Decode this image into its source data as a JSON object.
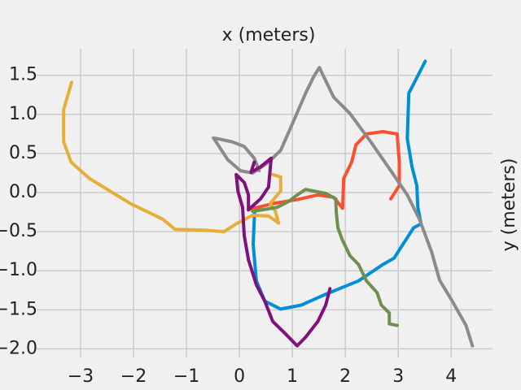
{
  "chart_data": {
    "type": "line",
    "title": "x (meters)",
    "ylabel": "y (meters)",
    "ylabel_side": "right",
    "grid": true,
    "xlim": [
      -3.83,
      4.78
    ],
    "ylim": [
      -2.11,
      1.84
    ],
    "xticks": [
      {
        "value": -3,
        "label": "−3"
      },
      {
        "value": -2,
        "label": "−2"
      },
      {
        "value": -1,
        "label": "−1"
      },
      0,
      1,
      2,
      3,
      4
    ],
    "yticks": [
      {
        "value": 1.5,
        "label": "1.5"
      },
      {
        "value": 1.0,
        "label": "1.0"
      },
      {
        "value": 0.5,
        "label": "0.5"
      },
      {
        "value": 0.0,
        "label": "0.0"
      },
      {
        "value": -0.5,
        "label": "−0.5"
      },
      {
        "value": -1.0,
        "label": "−1.0"
      },
      {
        "value": -1.5,
        "label": "−1.5"
      },
      {
        "value": -2.0,
        "label": "−2.0"
      }
    ],
    "series": [
      {
        "color": "#008fd5",
        "x": [
          3.51,
          3.2,
          3.17,
          3.26,
          3.35,
          3.37,
          3.43,
          3.29,
          3.09,
          2.92,
          2.71,
          2.25,
          1.63,
          1.17,
          0.78,
          0.48,
          0.32,
          0.26,
          0.29
        ],
        "values": [
          1.68,
          1.27,
          0.69,
          0.33,
          0.09,
          -0.19,
          -0.4,
          -0.45,
          -0.66,
          -0.84,
          -0.92,
          -1.13,
          -1.3,
          -1.44,
          -1.49,
          -1.39,
          -1.13,
          -0.66,
          -0.19
        ]
      },
      {
        "color": "#fc4f30",
        "x": [
          2.86,
          3.02,
          3.02,
          2.98,
          2.71,
          2.4,
          2.2,
          2.12,
          1.97,
          1.95,
          1.78,
          1.48,
          1.09,
          0.63,
          0.17
        ],
        "values": [
          -0.08,
          0.09,
          0.39,
          0.75,
          0.78,
          0.75,
          0.61,
          0.39,
          0.18,
          -0.2,
          -0.06,
          -0.03,
          -0.09,
          -0.14,
          -0.22
        ]
      },
      {
        "color": "#e5ae38",
        "x": [
          -3.17,
          -3.32,
          -3.32,
          -3.18,
          -2.83,
          -2.06,
          -1.45,
          -1.22,
          -0.68,
          -0.29,
          -0.06,
          0.25,
          0.55,
          0.74,
          0.68,
          0.58,
          0.78,
          0.78,
          0.63
        ],
        "values": [
          1.41,
          1.06,
          0.65,
          0.39,
          0.18,
          -0.14,
          -0.34,
          -0.47,
          -0.48,
          -0.5,
          -0.4,
          -0.29,
          -0.3,
          -0.39,
          -0.24,
          -0.14,
          0.02,
          0.2,
          0.23
        ]
      },
      {
        "color": "#8b8b8b",
        "x": [
          4.4,
          4.28,
          4.02,
          3.78,
          3.63,
          3.4,
          3.17,
          2.86,
          2.48,
          2.09,
          1.78,
          1.63,
          1.51,
          1.4,
          1.25,
          1.02,
          0.78,
          0.55,
          0.25,
          0.02,
          -0.22,
          -0.49,
          -0.14,
          0.09,
          0.28,
          0.37
        ],
        "values": [
          -1.96,
          -1.7,
          -1.39,
          -1.12,
          -0.76,
          -0.34,
          -0.03,
          0.28,
          0.65,
          1.01,
          1.22,
          1.43,
          1.6,
          1.48,
          1.27,
          0.91,
          0.54,
          0.39,
          0.25,
          0.28,
          0.42,
          0.7,
          0.65,
          0.59,
          0.44,
          0.28
        ]
      },
      {
        "color": "#6d904f",
        "x": [
          2.98,
          2.83,
          2.83,
          2.68,
          2.6,
          2.4,
          2.25,
          2.09,
          1.94,
          1.86,
          1.83,
          1.82,
          1.63,
          1.4,
          1.25,
          1.09,
          0.94,
          0.71,
          0.25
        ],
        "values": [
          -1.7,
          -1.68,
          -1.54,
          -1.44,
          -1.28,
          -1.13,
          -0.92,
          -0.81,
          -0.6,
          -0.45,
          -0.26,
          -0.08,
          -0.01,
          0.02,
          0.04,
          -0.03,
          -0.11,
          -0.19,
          -0.24
        ]
      },
      {
        "color": "#810f7c",
        "x": [
          1.71,
          1.63,
          1.48,
          1.25,
          1.09,
          0.86,
          0.63,
          0.48,
          0.32,
          0.17,
          0.09,
          0.06,
          -0.03,
          -0.06,
          0.09,
          0.17,
          0.17,
          0.4,
          0.55,
          0.6,
          0.4,
          0.22,
          0.28
        ],
        "values": [
          -1.23,
          -1.44,
          -1.65,
          -1.85,
          -1.96,
          -1.8,
          -1.65,
          -1.39,
          -1.18,
          -0.86,
          -0.55,
          -0.19,
          0.02,
          0.23,
          0.13,
          -0.03,
          -0.22,
          -0.08,
          0.07,
          0.44,
          0.33,
          0.26,
          0.39
        ]
      }
    ]
  }
}
